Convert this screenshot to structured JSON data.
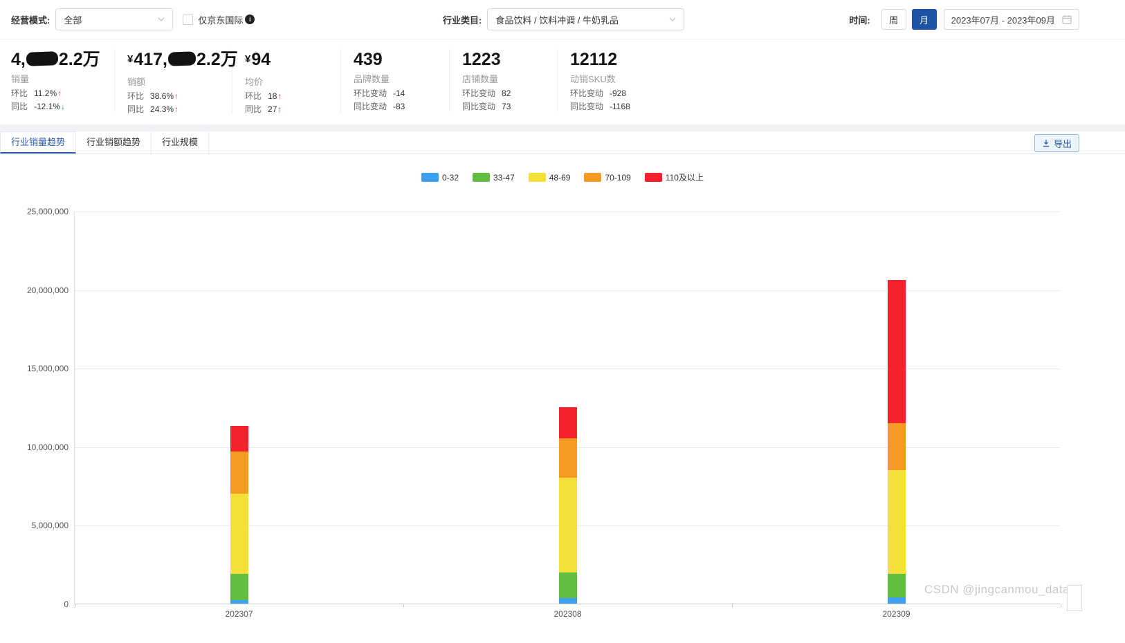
{
  "filters": {
    "mode_label": "经营模式:",
    "mode_value": "全部",
    "jd_intl_label": "仅京东国际",
    "category_label": "行业类目:",
    "category_value": "食品饮料 / 饮料冲调 / 牛奶乳品",
    "time_label": "时间:",
    "week_label": "周",
    "month_label": "月",
    "date_range": "2023年07月 - 2023年09月"
  },
  "stats": [
    {
      "value_pre": "4,",
      "value_post": "2.2万",
      "label": "销量",
      "rows": [
        {
          "label": "环比",
          "value": "11.2%",
          "arrow": "↑",
          "dir": "up"
        },
        {
          "label": "同比",
          "value": "-12.1%",
          "arrow": "↓",
          "dir": "down"
        }
      ]
    },
    {
      "currency": "¥",
      "value_pre": "417,",
      "value_post": "2.2万",
      "label": "销额",
      "rows": [
        {
          "label": "环比",
          "value": "38.6%",
          "arrow": "↑",
          "dir": "up"
        },
        {
          "label": "同比",
          "value": "24.3%",
          "arrow": "↑",
          "dir": "up"
        }
      ]
    },
    {
      "currency": "¥",
      "value": "94",
      "label": "均价",
      "rows": [
        {
          "label": "环比",
          "value": "18",
          "arrow": "↑",
          "dir": "up"
        },
        {
          "label": "同比",
          "value": "27",
          "arrow": "↑",
          "dir": "up"
        }
      ]
    },
    {
      "value": "439",
      "label": "品牌数量",
      "rows": [
        {
          "label": "环比变动",
          "value": "-14"
        },
        {
          "label": "同比变动",
          "value": "-83"
        }
      ]
    },
    {
      "value": "1223",
      "label": "店铺数量",
      "rows": [
        {
          "label": "环比变动",
          "value": "82"
        },
        {
          "label": "同比变动",
          "value": "73"
        }
      ]
    },
    {
      "value": "12112",
      "label": "动销SKU数",
      "rows": [
        {
          "label": "环比变动",
          "value": "-928"
        },
        {
          "label": "同比变动",
          "value": "-1168"
        }
      ]
    }
  ],
  "tabs": [
    {
      "label": "行业销量趋势",
      "active": true
    },
    {
      "label": "行业销额趋势",
      "active": false
    },
    {
      "label": "行业规模",
      "active": false
    }
  ],
  "export_label": "导出",
  "chart_data": {
    "type": "bar",
    "stacked": true,
    "title": "",
    "categories": [
      "202307",
      "202308",
      "202309"
    ],
    "series": [
      {
        "name": "0-32",
        "color": "#3da0f2",
        "values": [
          200000,
          350000,
          400000
        ]
      },
      {
        "name": "33-47",
        "color": "#61be43",
        "values": [
          1700000,
          1650000,
          1500000
        ]
      },
      {
        "name": "48-69",
        "color": "#f5e03a",
        "values": [
          5100000,
          6000000,
          6600000
        ]
      },
      {
        "name": "70-109",
        "color": "#f59a23",
        "values": [
          2700000,
          2500000,
          3000000
        ]
      },
      {
        "name": "110及以上",
        "color": "#f5222d",
        "values": [
          1600000,
          2000000,
          9100000
        ]
      }
    ],
    "totals": [
      11300000,
      12500000,
      20600000
    ],
    "ylim": [
      0,
      25000000
    ],
    "y_step": 5000000,
    "xlabel": "",
    "ylabel": "",
    "grid": true,
    "legend_position": "top"
  },
  "watermark": "CSDN @jingcanmou_data"
}
